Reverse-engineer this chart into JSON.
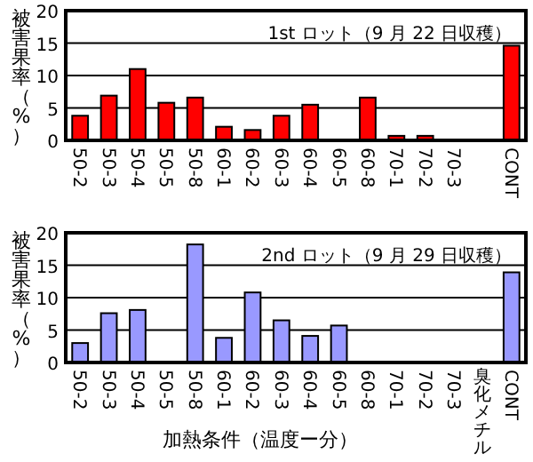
{
  "chart_data": [
    {
      "type": "bar",
      "title": "1st ロット（9 月 22 日収穫）",
      "ylabel": "被害果率（%）",
      "categories": [
        "50-2",
        "50-3",
        "50-4",
        "50-5",
        "50-8",
        "60-1",
        "60-2",
        "60-3",
        "60-4",
        "60-5",
        "60-8",
        "70-1",
        "70-2",
        "70-3",
        null,
        "CONT"
      ],
      "series": [
        {
          "color": "#ff0000",
          "values": [
            3.8,
            6.9,
            11,
            5.8,
            6.6,
            2.1,
            1.6,
            3.8,
            5.5,
            0,
            6.6,
            0.7,
            0.7,
            0,
            null,
            14.6
          ]
        }
      ],
      "ylim": [
        0,
        20
      ],
      "yticks": [
        0,
        5,
        10,
        15,
        20
      ],
      "grid": "y"
    },
    {
      "type": "bar",
      "title": "2nd ロット（9 月 29 日収穫）",
      "ylabel": "被害果率（%）",
      "xlabel": "加熱条件（温度ー分）",
      "categories": [
        "50-2",
        "50-3",
        "50-4",
        "50-5",
        "50-8",
        "60-1",
        "60-2",
        "60-3",
        "60-4",
        "60-5",
        "60-8",
        "70-1",
        "70-2",
        "70-3",
        "臭化メチル",
        "CONT"
      ],
      "series": [
        {
          "color": "#9999ff",
          "values": [
            3,
            7.6,
            8.1,
            0,
            18.2,
            3.8,
            10.8,
            6.5,
            4.1,
            5.7,
            0,
            0,
            0,
            0,
            0,
            13.9
          ]
        }
      ],
      "ylim": [
        0,
        20
      ],
      "yticks": [
        0,
        5,
        10,
        15,
        20
      ],
      "grid": "y"
    }
  ]
}
